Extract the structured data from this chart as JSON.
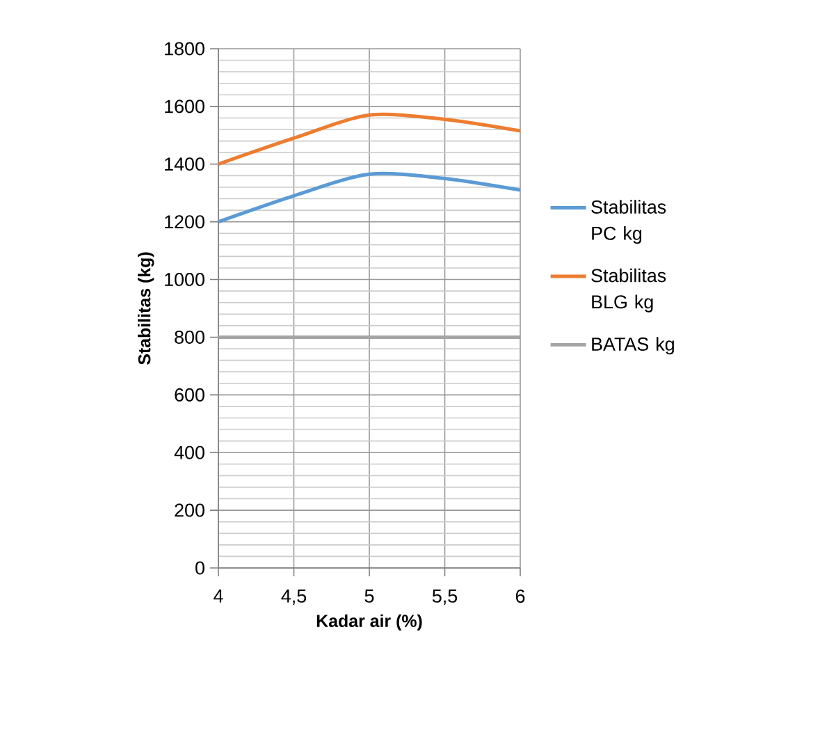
{
  "chart_data": {
    "type": "line",
    "xlabel": "Kadar air (%)",
    "ylabel": "Stabilitas (kg)",
    "x": [
      4,
      4.5,
      5,
      5.5,
      6
    ],
    "series": [
      {
        "name": "Stabilitas PC kg",
        "color": "#5b9bd5",
        "values": [
          1200,
          1290,
          1365,
          1350,
          1310
        ]
      },
      {
        "name": "Stabilitas BLG kg",
        "color": "#ed7d31",
        "values": [
          1400,
          1490,
          1570,
          1555,
          1515
        ]
      },
      {
        "name": "BATAS kg",
        "color": "#a5a5a5",
        "values": [
          800,
          800,
          800,
          800,
          800
        ]
      }
    ],
    "xlim": [
      4,
      6
    ],
    "xticks": [
      4,
      {
        "value": 4.5,
        "label": "4,5"
      },
      5,
      {
        "value": 5.5,
        "label": "5,5"
      },
      6
    ],
    "ylim": [
      0,
      1800
    ],
    "yticks": [
      0,
      200,
      400,
      600,
      800,
      1000,
      1200,
      1400,
      1600,
      1800
    ],
    "grid": true,
    "legend": "right",
    "marker": "none",
    "line_style": "solid"
  }
}
